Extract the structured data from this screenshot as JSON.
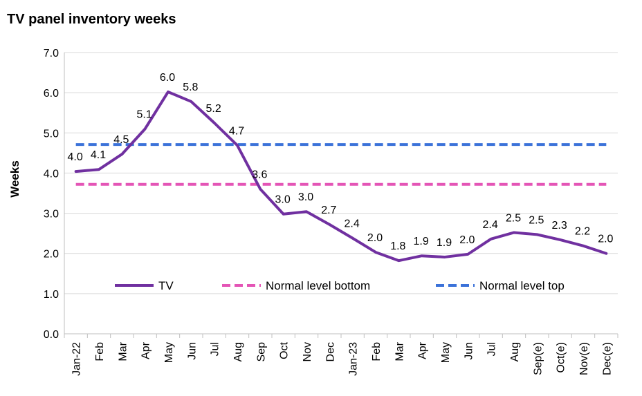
{
  "chart_data": {
    "type": "line",
    "title": "TV panel inventory weeks",
    "ylabel": "Weeks",
    "xlabel": "",
    "ylim": [
      0,
      7
    ],
    "yticks": [
      "0.0",
      "1.0",
      "2.0",
      "3.0",
      "4.0",
      "5.0",
      "6.0",
      "7.0"
    ],
    "grid": true,
    "legend_position": "bottom-inside",
    "categories": [
      "Jan-22",
      "Feb",
      "Mar",
      "Apr",
      "May",
      "Jun",
      "Jul",
      "Aug",
      "Sep",
      "Oct",
      "Nov",
      "Dec",
      "Jan-23",
      "Feb",
      "Mar",
      "Apr",
      "May",
      "Jun",
      "Jul",
      "Aug",
      "Sep(e)",
      "Oct(e)",
      "Nov(e)",
      "Dec(e)"
    ],
    "series": [
      {
        "name": "TV",
        "color": "#7030a0",
        "style": "solid",
        "values": [
          4.04,
          4.09,
          4.47,
          5.1,
          6.02,
          5.78,
          5.25,
          4.69,
          3.6,
          2.98,
          3.04,
          2.72,
          2.38,
          2.03,
          1.82,
          1.94,
          1.91,
          1.98,
          2.36,
          2.52,
          2.47,
          2.34,
          2.19,
          2.0
        ],
        "labels": [
          "4.0",
          "4.1",
          "4.5",
          "5.1",
          "6.0",
          "5.8",
          "5.2",
          "4.7",
          "3.6",
          "3.0",
          "3.0",
          "2.7",
          "2.4",
          "2.0",
          "1.8",
          "1.9",
          "1.9",
          "2.0",
          "2.4",
          "2.5",
          "2.5",
          "2.3",
          "2.2",
          "2.0"
        ]
      },
      {
        "name": "Normal level bottom",
        "color": "#e455b6",
        "style": "dashed",
        "values": [
          3.72,
          3.72,
          3.72,
          3.72,
          3.72,
          3.72,
          3.72,
          3.72,
          3.72,
          3.72,
          3.72,
          3.72,
          3.72,
          3.72,
          3.72,
          3.72,
          3.72,
          3.72,
          3.72,
          3.72,
          3.72,
          3.72,
          3.72,
          3.72
        ]
      },
      {
        "name": "Normal level top",
        "color": "#3b72d9",
        "style": "dashed",
        "values": [
          4.71,
          4.71,
          4.71,
          4.71,
          4.71,
          4.71,
          4.71,
          4.71,
          4.71,
          4.71,
          4.71,
          4.71,
          4.71,
          4.71,
          4.71,
          4.71,
          4.71,
          4.71,
          4.71,
          4.71,
          4.71,
          4.71,
          4.71,
          4.71
        ]
      }
    ]
  }
}
